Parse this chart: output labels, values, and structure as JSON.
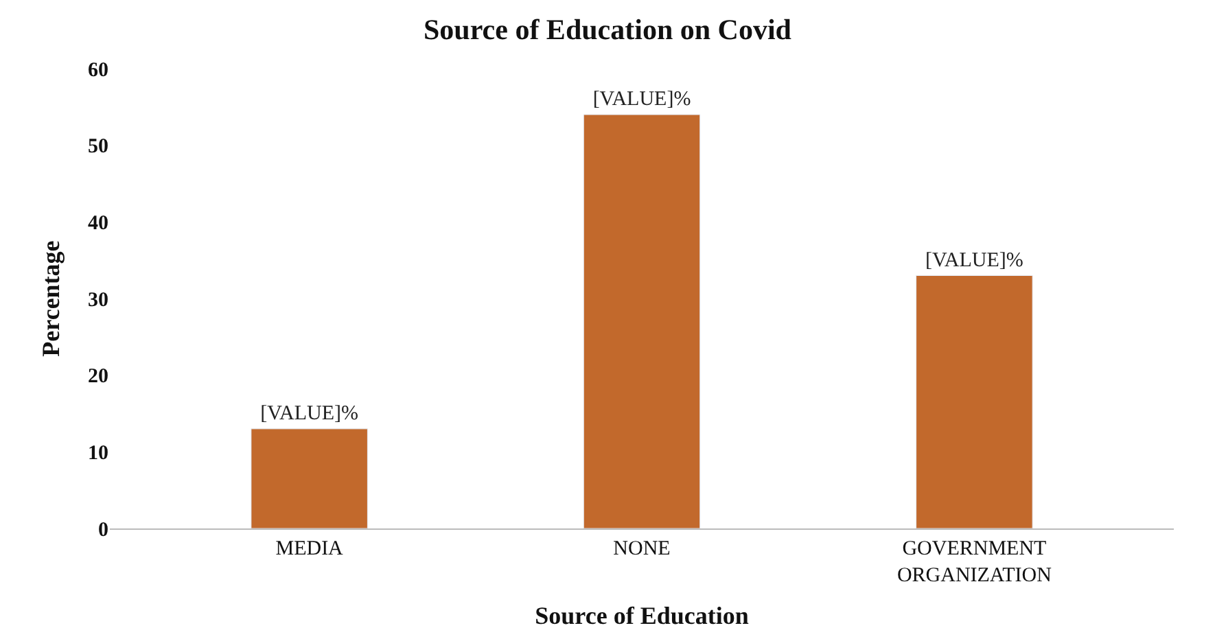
{
  "chart_data": {
    "type": "bar",
    "title": "Source of Education on Covid",
    "xlabel": "Source of Education",
    "ylabel": "Percentage",
    "categories": [
      "MEDIA",
      "NONE",
      "GOVERNMENT\nORGANIZATION"
    ],
    "values": [
      13,
      54,
      33
    ],
    "value_labels": [
      "[VALUE]%",
      "[VALUE]%",
      "[VALUE]%"
    ],
    "color": "#c2692c",
    "ylim": [
      0,
      60
    ],
    "yticks": [
      0,
      10,
      20,
      30,
      40,
      50,
      60
    ]
  }
}
